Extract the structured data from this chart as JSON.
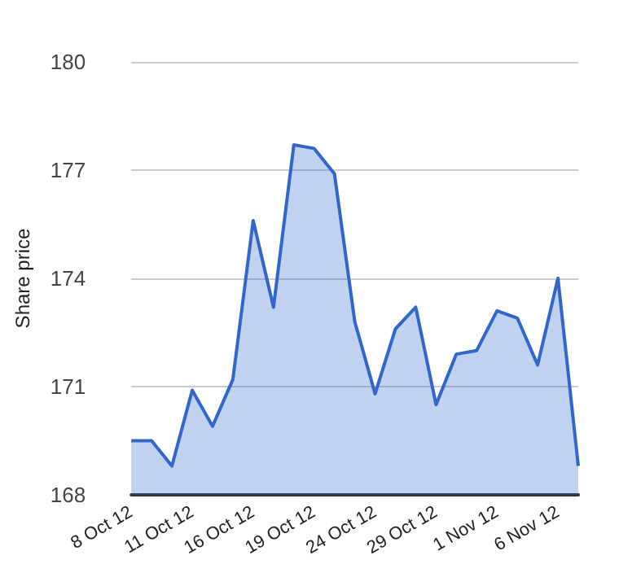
{
  "chart_data": {
    "type": "area",
    "ylabel": "Share price",
    "categories": [
      "8 Oct 12",
      null,
      null,
      "11 Oct 12",
      null,
      null,
      "16 Oct 12",
      null,
      null,
      "19 Oct 12",
      null,
      null,
      "24 Oct 12",
      null,
      null,
      "29 Oct 12",
      null,
      null,
      "1 Nov 12",
      null,
      null,
      "6 Nov 12",
      null
    ],
    "series": [
      {
        "color": "#3366cc",
        "values": [
          169.5,
          169.5,
          168.8,
          170.9,
          169.9,
          171.2,
          175.6,
          173.2,
          177.7,
          177.6,
          176.9,
          172.8,
          170.8,
          172.6,
          173.2,
          170.5,
          171.9,
          172.0,
          173.1,
          172.9,
          171.6,
          174.0,
          168.8
        ]
      }
    ],
    "ylim": [
      168,
      180
    ],
    "yticks": [
      168,
      171,
      174,
      177,
      180
    ],
    "grid": "y",
    "marker": "none",
    "line_style": "solid"
  }
}
